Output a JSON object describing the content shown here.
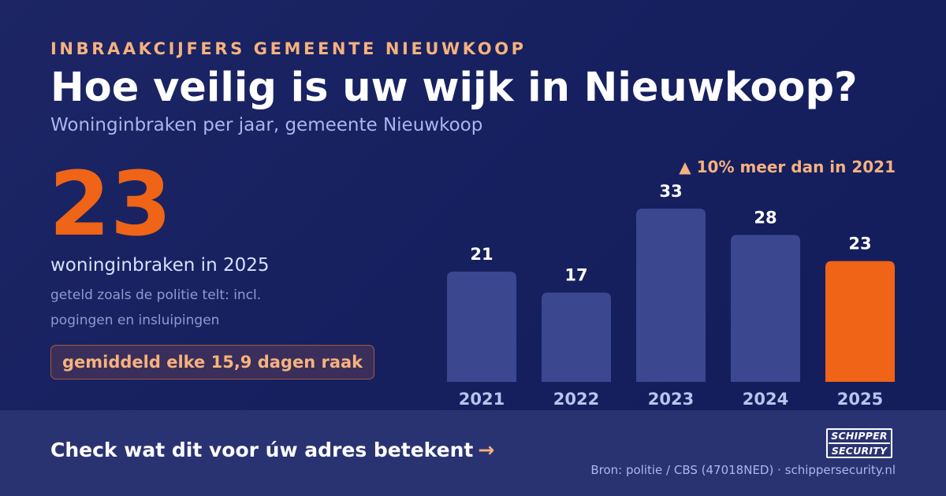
{
  "header": {
    "eyebrow": "INBRAAKCIJFERS GEMEENTE NIEUWKOOP",
    "title": "Hoe veilig is uw wijk in Nieuwkoop?",
    "subtitle": "Woninginbraken per jaar, gemeente Nieuwkoop"
  },
  "highlight": {
    "value": "23",
    "label": "woninginbraken in 2025",
    "note_line1": "geteld zoals de politie telt: incl.",
    "note_line2": "pogingen en insluipingen",
    "badge": "gemiddeld elke 15,9 dagen raak"
  },
  "footer": {
    "cta": "Check wat dit voor úw adres betekent",
    "cta_arrow": "→",
    "source": "Bron: politie / CBS (47018NED) · schippersecurity.nl",
    "logo_line1": "SCHIPPER",
    "logo_line2": "SECURITY"
  },
  "colors": {
    "bar": "#3b4890",
    "bar_highlight": "#ef6416",
    "accent": "#f6b27e"
  },
  "chart_data": {
    "type": "bar",
    "categories": [
      "2021",
      "2022",
      "2023",
      "2024",
      "2025"
    ],
    "values": [
      21,
      17,
      33,
      28,
      23
    ],
    "highlight_index": 4,
    "annotation": "▲ 10% meer dan in 2021",
    "ylim": [
      0,
      33
    ]
  }
}
